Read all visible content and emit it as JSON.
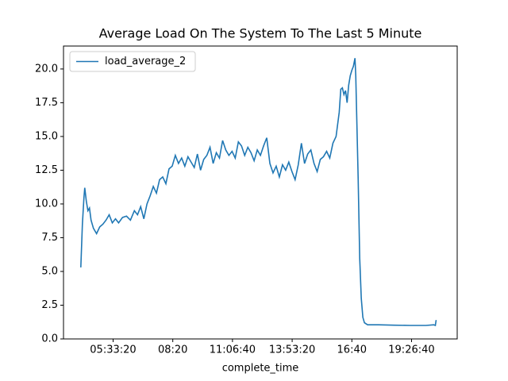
{
  "chart_data": {
    "type": "line",
    "title": "Average Load On The System To The Last 5 Minute",
    "x_label": "complete_time",
    "x": [
      14591,
      14855,
      15119,
      15251,
      15514,
      15778,
      16042,
      16306,
      16702,
      17230,
      17757,
      18285,
      18813,
      19340,
      19868,
      20400,
      20920,
      21580,
      22244,
      22904,
      23564,
      24092,
      24620,
      25148,
      25676,
      26204,
      26732,
      27260,
      27788,
      28316,
      28844,
      29372,
      29900,
      30428,
      30956,
      31484,
      32012,
      32540,
      33068,
      33596,
      34124,
      34652,
      35180,
      35708,
      36236,
      36764,
      37292,
      37820,
      38348,
      38876,
      39404,
      39932,
      40460,
      40988,
      41516,
      42044,
      42572,
      43100,
      43628,
      44156,
      44684,
      45212,
      45740,
      46268,
      46796,
      47324,
      47852,
      48380,
      48908,
      49436,
      49964,
      50492,
      51020,
      51548,
      52076,
      52604,
      53132,
      53660,
      54188,
      54716,
      55244,
      55772,
      56300,
      56828,
      57356,
      57884,
      58148,
      58412,
      58676,
      58940,
      59204,
      59468,
      59732,
      59996,
      60260,
      60524,
      60656,
      60788,
      61052,
      61316,
      61580,
      61844,
      62108,
      62636,
      64484,
      67124,
      69764,
      72404,
      73724,
      73988,
      74120
    ],
    "series": [
      {
        "name": "load_average_2",
        "color": "#1f77b4",
        "values": [
          5.3,
          8.5,
          10.5,
          11.2,
          10.2,
          9.5,
          9.7,
          8.8,
          8.2,
          7.8,
          8.3,
          8.5,
          8.8,
          9.2,
          8.6,
          8.9,
          8.6,
          9.0,
          9.1,
          8.8,
          9.5,
          9.2,
          9.8,
          8.9,
          10.0,
          10.6,
          11.3,
          10.8,
          11.8,
          12.0,
          11.5,
          12.6,
          12.8,
          13.6,
          13.0,
          13.4,
          12.8,
          13.5,
          13.1,
          12.7,
          13.7,
          12.5,
          13.3,
          13.6,
          14.2,
          13.0,
          13.8,
          13.4,
          14.7,
          14.0,
          13.6,
          13.9,
          13.4,
          14.6,
          14.3,
          13.6,
          14.2,
          13.8,
          13.2,
          14.0,
          13.6,
          14.3,
          14.9,
          13.0,
          12.3,
          12.8,
          12.0,
          12.9,
          12.5,
          13.1,
          12.4,
          11.8,
          12.9,
          14.5,
          13.0,
          13.7,
          14.0,
          13.0,
          12.4,
          13.3,
          13.5,
          13.9,
          13.4,
          14.5,
          15.0,
          16.8,
          18.5,
          18.6,
          18.1,
          18.4,
          17.5,
          18.8,
          19.5,
          19.9,
          20.2,
          20.8,
          19.5,
          17.0,
          12.0,
          6.0,
          3.0,
          1.6,
          1.2,
          1.05,
          1.05,
          1.02,
          1.0,
          1.0,
          1.05,
          1.0,
          1.4
        ]
      }
    ],
    "xlim": [
      11690,
      77650
    ],
    "xticks": [
      {
        "value": 20000,
        "label": "05:33:20"
      },
      {
        "value": 30000,
        "label": "08:20"
      },
      {
        "value": 40000,
        "label": "11:06:40"
      },
      {
        "value": 50000,
        "label": "13:53:20"
      },
      {
        "value": 60000,
        "label": "16:40"
      },
      {
        "value": 70000,
        "label": "19:26:40"
      }
    ],
    "ylim": [
      0,
      21.7
    ],
    "yticks": [
      {
        "value": 0,
        "label": "0.0"
      },
      2.5,
      {
        "value": 5,
        "label": "5.0"
      },
      7.5,
      {
        "value": 10,
        "label": "10.0"
      },
      12.5,
      {
        "value": 15,
        "label": "15.0"
      },
      17.5,
      {
        "value": 20,
        "label": "20.0"
      }
    ],
    "legend": "upper left"
  }
}
